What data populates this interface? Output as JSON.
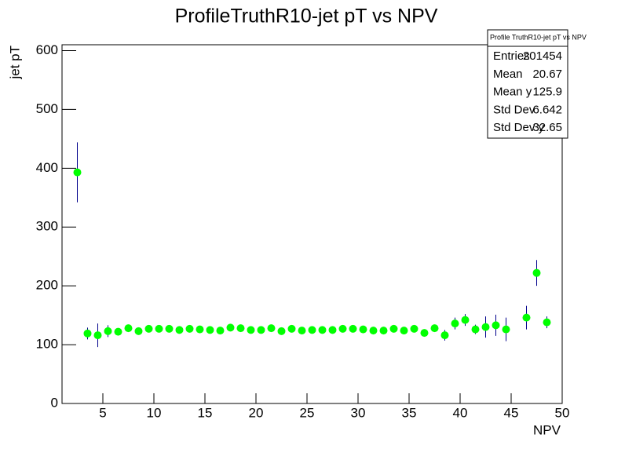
{
  "chart_data": {
    "type": "errorbar",
    "title": "ProfileTruthR10-jet pT vs NPV",
    "x_label": "NPV",
    "y_label": "jet pT",
    "x": [
      2.5,
      3.5,
      4.5,
      5.5,
      6.5,
      7.5,
      8.5,
      9.5,
      10.5,
      11.5,
      12.5,
      13.5,
      14.5,
      15.5,
      16.5,
      17.5,
      18.5,
      19.5,
      20.5,
      21.5,
      22.5,
      23.5,
      24.5,
      25.5,
      26.5,
      27.5,
      28.5,
      29.5,
      30.5,
      31.5,
      32.5,
      33.5,
      34.5,
      35.5,
      36.5,
      37.5,
      38.5,
      39.5,
      40.5,
      41.5,
      42.5,
      43.5,
      44.5,
      45.5,
      46.5,
      47.5,
      48.5
    ],
    "values": [
      393,
      119,
      116,
      123,
      122,
      128,
      123,
      127,
      127,
      127,
      125,
      127,
      126,
      125,
      124,
      129,
      128,
      125,
      125,
      128,
      123,
      127,
      124,
      125,
      125,
      125,
      127,
      127,
      126,
      124,
      124,
      127,
      124,
      127,
      120,
      128,
      116,
      136,
      142,
      126,
      130,
      133,
      126,
      null,
      146,
      222,
      138
    ],
    "errors": [
      51,
      10,
      20,
      10,
      6,
      4,
      4,
      3,
      3,
      3,
      3,
      3,
      3,
      3,
      3,
      3,
      3,
      3,
      3,
      3,
      3,
      3,
      3,
      3,
      3,
      3,
      3,
      3,
      3,
      3,
      3,
      3,
      4,
      4,
      5,
      6,
      9,
      10,
      10,
      8,
      18,
      18,
      20,
      null,
      20,
      22,
      10
    ],
    "color": "#00ff00",
    "error_color": "#00008b",
    "xlim": [
      1,
      50
    ],
    "xticks": [
      5,
      10,
      15,
      20,
      25,
      30,
      35,
      40,
      45,
      50
    ],
    "ylim": [
      0,
      610
    ],
    "yticks": [
      0,
      100,
      200,
      300,
      400,
      500,
      600
    ],
    "stats": {
      "title": "Profile TruthR10-jet pT vs NPV",
      "rows": [
        [
          "Entries",
          201454
        ],
        [
          "Mean",
          20.67
        ],
        [
          "Mean y",
          125.9
        ],
        [
          "Std Dev",
          6.642
        ],
        [
          "Std Dev y",
          32.65
        ]
      ]
    }
  }
}
